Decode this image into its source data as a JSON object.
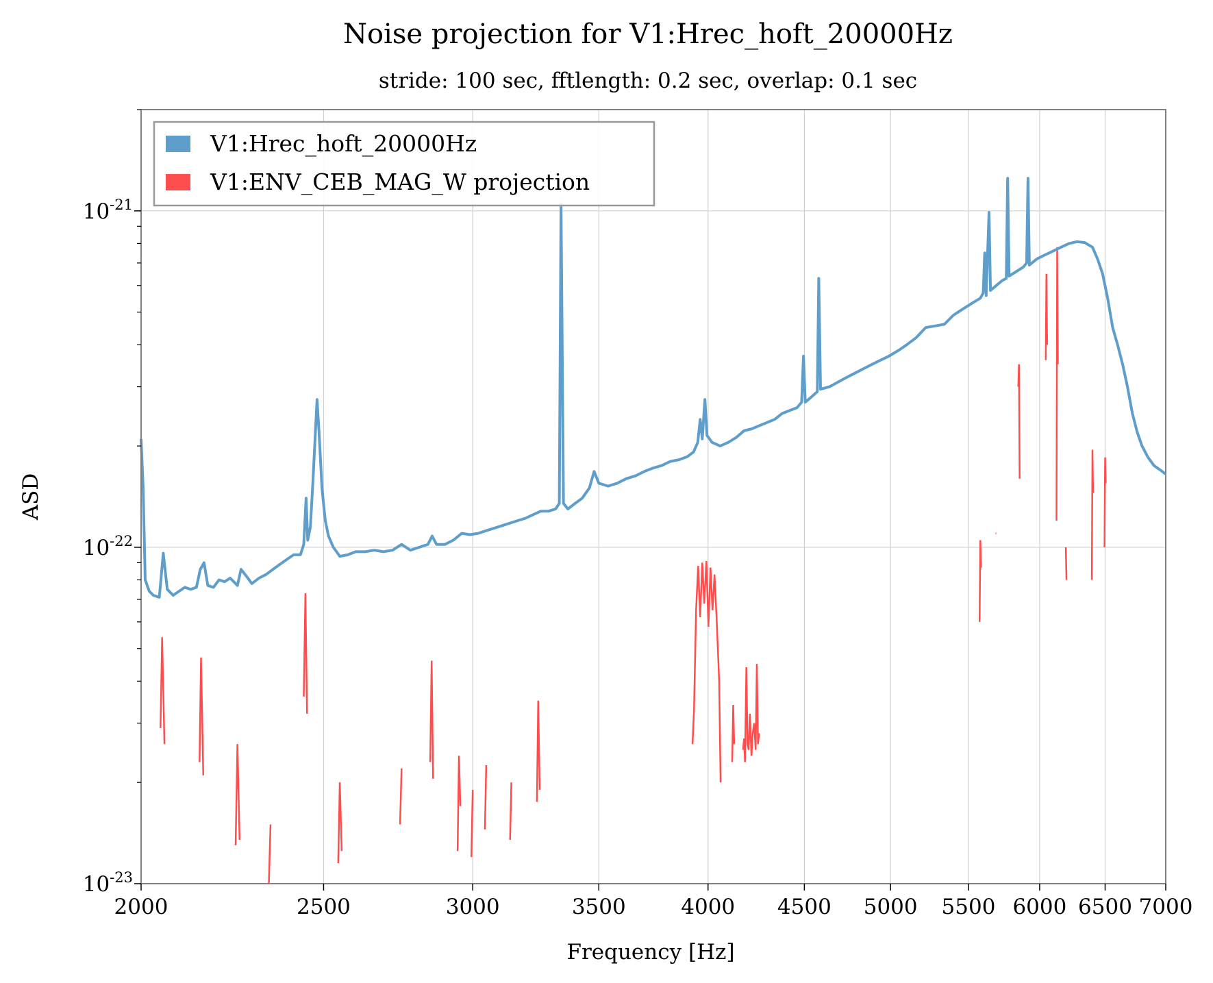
{
  "chart_data": {
    "type": "line",
    "title": "Noise projection for V1:Hrec_hoft_20000Hz",
    "subtitle": "stride: 100 sec, fftlength: 0.2 sec, overlap: 0.1 sec",
    "xlabel": "Frequency [Hz]",
    "ylabel": "ASD",
    "xscale": "log",
    "yscale": "log",
    "xlim": [
      2000,
      7000
    ],
    "ylim": [
      1e-23,
      2e-21
    ],
    "grid": true,
    "legend_placement": "top-left",
    "x_ticks": [
      {
        "value": 2000,
        "label": "2000"
      },
      {
        "value": 2500,
        "label": "2500"
      },
      {
        "value": 3000,
        "label": "3000"
      },
      {
        "value": 3500,
        "label": "3500"
      },
      {
        "value": 4000,
        "label": "4000"
      },
      {
        "value": 4500,
        "label": "4500"
      },
      {
        "value": 5000,
        "label": "5000"
      },
      {
        "value": 5500,
        "label": "5500"
      },
      {
        "value": 6000,
        "label": "6000"
      },
      {
        "value": 6500,
        "label": "6500"
      },
      {
        "value": 7000,
        "label": "7000"
      }
    ],
    "y_ticks": [
      {
        "value": 1e-23,
        "base": "10",
        "exp": "-23"
      },
      {
        "value": 1e-22,
        "base": "10",
        "exp": "-22"
      },
      {
        "value": 1e-21,
        "base": "10",
        "exp": "-21"
      }
    ],
    "series": [
      {
        "name": "V1:Hrec_hoft_20000Hz",
        "color": "#5f9ecb",
        "points": [
          [
            2000,
            2.1e-22
          ],
          [
            2005,
            1.5e-22
          ],
          [
            2010,
            8e-23
          ],
          [
            2020,
            7.4e-23
          ],
          [
            2030,
            7.2e-23
          ],
          [
            2045,
            7.1e-23
          ],
          [
            2055,
            9.6e-23
          ],
          [
            2065,
            7.5e-23
          ],
          [
            2080,
            7.2e-23
          ],
          [
            2095,
            7.4e-23
          ],
          [
            2110,
            7.6e-23
          ],
          [
            2125,
            7.5e-23
          ],
          [
            2140,
            7.6e-23
          ],
          [
            2150,
            8.6e-23
          ],
          [
            2160,
            9e-23
          ],
          [
            2170,
            7.7e-23
          ],
          [
            2185,
            7.6e-23
          ],
          [
            2200,
            8e-23
          ],
          [
            2215,
            7.9e-23
          ],
          [
            2230,
            8.1e-23
          ],
          [
            2250,
            7.7e-23
          ],
          [
            2260,
            8.6e-23
          ],
          [
            2275,
            8.2e-23
          ],
          [
            2290,
            7.8e-23
          ],
          [
            2310,
            8.1e-23
          ],
          [
            2330,
            8.3e-23
          ],
          [
            2350,
            8.6e-23
          ],
          [
            2370,
            8.9e-23
          ],
          [
            2390,
            9.2e-23
          ],
          [
            2410,
            9.5e-23
          ],
          [
            2430,
            9.5e-23
          ],
          [
            2440,
            1.02e-22
          ],
          [
            2447,
            1.4e-22
          ],
          [
            2452,
            1.05e-22
          ],
          [
            2460,
            1.15e-22
          ],
          [
            2468,
            1.6e-22
          ],
          [
            2475,
            2.2e-22
          ],
          [
            2480,
            2.75e-22
          ],
          [
            2486,
            2.2e-22
          ],
          [
            2495,
            1.5e-22
          ],
          [
            2505,
            1.2e-22
          ],
          [
            2515,
            1.08e-22
          ],
          [
            2530,
            1e-22
          ],
          [
            2550,
            9.4e-23
          ],
          [
            2575,
            9.5e-23
          ],
          [
            2600,
            9.7e-23
          ],
          [
            2630,
            9.7e-23
          ],
          [
            2660,
            9.8e-23
          ],
          [
            2690,
            9.7e-23
          ],
          [
            2720,
            9.8e-23
          ],
          [
            2750,
            1.02e-22
          ],
          [
            2780,
            9.8e-23
          ],
          [
            2810,
            1e-22
          ],
          [
            2840,
            1.02e-22
          ],
          [
            2855,
            1.08e-22
          ],
          [
            2870,
            1.02e-22
          ],
          [
            2900,
            1.02e-22
          ],
          [
            2930,
            1.05e-22
          ],
          [
            2960,
            1.1e-22
          ],
          [
            2990,
            1.09e-22
          ],
          [
            3020,
            1.1e-22
          ],
          [
            3050,
            1.12e-22
          ],
          [
            3080,
            1.14e-22
          ],
          [
            3110,
            1.16e-22
          ],
          [
            3140,
            1.18e-22
          ],
          [
            3170,
            1.2e-22
          ],
          [
            3200,
            1.22e-22
          ],
          [
            3230,
            1.25e-22
          ],
          [
            3260,
            1.28e-22
          ],
          [
            3290,
            1.28e-22
          ],
          [
            3320,
            1.3e-22
          ],
          [
            3335,
            1.35e-22
          ],
          [
            3342,
            1.05e-21
          ],
          [
            3352,
            1.35e-22
          ],
          [
            3370,
            1.3e-22
          ],
          [
            3400,
            1.35e-22
          ],
          [
            3430,
            1.4e-22
          ],
          [
            3460,
            1.5e-22
          ],
          [
            3480,
            1.68e-22
          ],
          [
            3500,
            1.55e-22
          ],
          [
            3540,
            1.52e-22
          ],
          [
            3580,
            1.55e-22
          ],
          [
            3620,
            1.6e-22
          ],
          [
            3660,
            1.63e-22
          ],
          [
            3700,
            1.68e-22
          ],
          [
            3740,
            1.72e-22
          ],
          [
            3780,
            1.75e-22
          ],
          [
            3820,
            1.8e-22
          ],
          [
            3860,
            1.82e-22
          ],
          [
            3900,
            1.86e-22
          ],
          [
            3930,
            1.92e-22
          ],
          [
            3950,
            2.05e-22
          ],
          [
            3962,
            2.4e-22
          ],
          [
            3972,
            2.1e-22
          ],
          [
            3985,
            2.75e-22
          ],
          [
            3995,
            2.15e-22
          ],
          [
            4020,
            2.05e-22
          ],
          [
            4060,
            2e-22
          ],
          [
            4100,
            2.05e-22
          ],
          [
            4140,
            2.12e-22
          ],
          [
            4180,
            2.22e-22
          ],
          [
            4220,
            2.25e-22
          ],
          [
            4260,
            2.3e-22
          ],
          [
            4300,
            2.35e-22
          ],
          [
            4340,
            2.4e-22
          ],
          [
            4380,
            2.5e-22
          ],
          [
            4420,
            2.55e-22
          ],
          [
            4460,
            2.6e-22
          ],
          [
            4485,
            2.7e-22
          ],
          [
            4495,
            3.7e-22
          ],
          [
            4505,
            2.7e-22
          ],
          [
            4540,
            2.8e-22
          ],
          [
            4572,
            2.9e-22
          ],
          [
            4580,
            6.3e-22
          ],
          [
            4590,
            2.95e-22
          ],
          [
            4640,
            3e-22
          ],
          [
            4690,
            3.1e-22
          ],
          [
            4740,
            3.2e-22
          ],
          [
            4790,
            3.3e-22
          ],
          [
            4840,
            3.4e-22
          ],
          [
            4890,
            3.5e-22
          ],
          [
            4940,
            3.6e-22
          ],
          [
            4990,
            3.7e-22
          ],
          [
            5050,
            3.85e-22
          ],
          [
            5100,
            4e-22
          ],
          [
            5160,
            4.2e-22
          ],
          [
            5220,
            4.5e-22
          ],
          [
            5280,
            4.55e-22
          ],
          [
            5340,
            4.6e-22
          ],
          [
            5400,
            4.9e-22
          ],
          [
            5460,
            5.1e-22
          ],
          [
            5520,
            5.3e-22
          ],
          [
            5580,
            5.5e-22
          ],
          [
            5600,
            5.7e-22
          ],
          [
            5610,
            7.5e-22
          ],
          [
            5620,
            5.6e-22
          ],
          [
            5640,
            9.9e-22
          ],
          [
            5650,
            5.8e-22
          ],
          [
            5690,
            6e-22
          ],
          [
            5730,
            6.2e-22
          ],
          [
            5760,
            6.3e-22
          ],
          [
            5770,
            1.25e-21
          ],
          [
            5780,
            6.4e-22
          ],
          [
            5830,
            6.6e-22
          ],
          [
            5880,
            6.8e-22
          ],
          [
            5905,
            7e-22
          ],
          [
            5915,
            1.25e-21
          ],
          [
            5925,
            6.9e-22
          ],
          [
            5980,
            7.2e-22
          ],
          [
            6040,
            7.4e-22
          ],
          [
            6100,
            7.6e-22
          ],
          [
            6160,
            7.8e-22
          ],
          [
            6220,
            8e-22
          ],
          [
            6280,
            8.1e-22
          ],
          [
            6340,
            8.05e-22
          ],
          [
            6400,
            7.8e-22
          ],
          [
            6440,
            7.2e-22
          ],
          [
            6480,
            6.5e-22
          ],
          [
            6520,
            5.5e-22
          ],
          [
            6560,
            4.5e-22
          ],
          [
            6600,
            4e-22
          ],
          [
            6640,
            3.5e-22
          ],
          [
            6680,
            3e-22
          ],
          [
            6720,
            2.5e-22
          ],
          [
            6760,
            2.2e-22
          ],
          [
            6800,
            2e-22
          ],
          [
            6850,
            1.85e-22
          ],
          [
            6900,
            1.75e-22
          ],
          [
            6950,
            1.7e-22
          ],
          [
            7000,
            1.65e-22
          ]
        ]
      },
      {
        "name": "V1:ENV_CEB_MAG_W projection",
        "color": "#ff4d4d",
        "segments": [
          [
            [
              2048,
              2.9e-23
            ],
            [
              2052,
              5.4e-23
            ],
            [
              2058,
              2.6e-23
            ]
          ],
          [
            [
              2148,
              2.3e-23
            ],
            [
              2152,
              4.7e-23
            ],
            [
              2158,
              2.1e-23
            ]
          ],
          [
            [
              2245,
              1.3e-23
            ],
            [
              2250,
              2.6e-23
            ],
            [
              2256,
              1.35e-23
            ]
          ],
          [
            [
              2338,
              1e-23
            ],
            [
              2343,
              1.5e-23
            ]
          ],
          [
            [
              2440,
              3.6e-23
            ],
            [
              2445,
              7.3e-23
            ],
            [
              2450,
              3.2e-23
            ]
          ],
          [
            [
              2545,
              1.15e-23
            ],
            [
              2550,
              2e-23
            ],
            [
              2556,
              1.25e-23
            ]
          ],
          [
            [
              2745,
              1.5e-23
            ],
            [
              2750,
              2.2e-23
            ]
          ],
          [
            [
              2848,
              2.3e-23
            ],
            [
              2853,
              4.6e-23
            ],
            [
              2858,
              2.05e-23
            ]
          ],
          [
            [
              2945,
              1.25e-23
            ],
            [
              2950,
              2.4e-23
            ],
            [
              2955,
              1.7e-23
            ]
          ],
          [
            [
              2995,
              1.2e-23
            ],
            [
              3000,
              1.9e-23
            ]
          ],
          [
            [
              3045,
              1.45e-23
            ],
            [
              3050,
              2.25e-23
            ]
          ],
          [
            [
              3140,
              1.35e-23
            ],
            [
              3145,
              2e-23
            ]
          ],
          [
            [
              3245,
              1.75e-23
            ],
            [
              3250,
              3.5e-23
            ],
            [
              3256,
              1.9e-23
            ]
          ],
          [
            [
              3925,
              2.6e-23
            ],
            [
              3932,
              3.3e-23
            ],
            [
              3942,
              6.5e-23
            ],
            [
              3952,
              8.8e-23
            ],
            [
              3962,
              6.2e-23
            ],
            [
              3972,
              9e-23
            ],
            [
              3982,
              6.8e-23
            ],
            [
              3992,
              9.1e-23
            ],
            [
              4002,
              5.8e-23
            ],
            [
              4012,
              8.7e-23
            ],
            [
              4022,
              6.5e-23
            ],
            [
              4032,
              8.3e-23
            ],
            [
              4042,
              6.2e-23
            ],
            [
              4055,
              4e-23
            ],
            [
              4062,
              2e-23
            ]
          ],
          [
            [
              4120,
              2.3e-23
            ],
            [
              4125,
              3.4e-23
            ],
            [
              4130,
              2.6e-23
            ]
          ],
          [
            [
              4175,
              2.5e-23
            ],
            [
              4180,
              2.7e-23
            ],
            [
              4185,
              2.3e-23
            ],
            [
              4192,
              4.4e-23
            ],
            [
              4198,
              2.6e-23
            ],
            [
              4204,
              2.5e-23
            ],
            [
              4210,
              3.2e-23
            ],
            [
              4218,
              2.4e-23
            ],
            [
              4225,
              2.8e-23
            ],
            [
              4232,
              3e-23
            ],
            [
              4240,
              2.5e-23
            ],
            [
              4246,
              4.5e-23
            ],
            [
              4252,
              2.6e-23
            ],
            [
              4258,
              2.8e-23
            ]
          ],
          [
            [
              5575,
              6e-23
            ],
            [
              5580,
              1.05e-22
            ],
            [
              5585,
              8.7e-23
            ]
          ],
          [
            [
              5685,
              1.1e-22
            ],
            [
              5690,
              1.1e-22
            ]
          ],
          [
            [
              5845,
              3e-22
            ],
            [
              5850,
              3.5e-22
            ],
            [
              5855,
              1.6e-22
            ]
          ],
          [
            [
              6045,
              3.6e-22
            ],
            [
              6050,
              6.5e-22
            ],
            [
              6055,
              4e-22
            ]
          ],
          [
            [
              6125,
              1.2e-22
            ],
            [
              6130,
              7.8e-22
            ],
            [
              6135,
              3.5e-22
            ]
          ],
          [
            [
              6195,
              1e-22
            ],
            [
              6200,
              8e-23
            ]
          ],
          [
            [
              6395,
              8e-23
            ],
            [
              6400,
              1.95e-22
            ],
            [
              6405,
              1.45e-22
            ]
          ],
          [
            [
              6495,
              1e-22
            ],
            [
              6500,
              1.85e-22
            ],
            [
              6505,
              1.55e-22
            ]
          ]
        ]
      }
    ]
  }
}
